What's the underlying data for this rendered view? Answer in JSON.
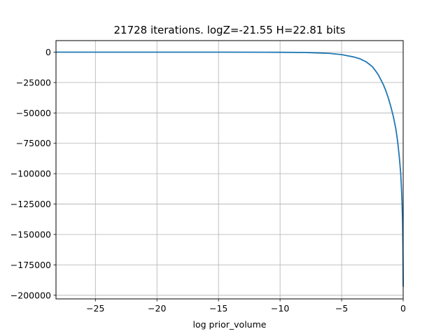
{
  "chart_data": {
    "type": "line",
    "title": "21728 iterations. logZ=-21.55 H=22.81 bits",
    "xlabel": "log prior_volume",
    "ylabel": "",
    "xlim": [
      -28.2,
      0
    ],
    "ylim": [
      -203000,
      9500
    ],
    "grid": true,
    "xticks": [
      -25,
      -20,
      -15,
      -10,
      -5,
      0
    ],
    "yticks": [
      0,
      -25000,
      -50000,
      -75000,
      -100000,
      -125000,
      -150000,
      -175000,
      -200000
    ],
    "xtick_labels": [
      "−25",
      "−20",
      "−15",
      "−10",
      "−5",
      "0"
    ],
    "ytick_labels": [
      "0",
      "−25000",
      "−50000",
      "−75000",
      "−100000",
      "−125000",
      "−150000",
      "−175000",
      "−200000"
    ],
    "colors": {
      "line": "#1f77b4",
      "grid": "#b0b0b0"
    },
    "series": [
      {
        "x": [
          -28.2,
          -25,
          -20,
          -15,
          -10,
          -8,
          -7,
          -6,
          -5.5,
          -5,
          -4.5,
          -4,
          -3.5,
          -3,
          -2.5,
          -2.2,
          -2,
          -1.8,
          -1.6,
          -1.4,
          -1.2,
          -1.0,
          -0.8,
          -0.6,
          -0.5,
          -0.4,
          -0.3,
          -0.2,
          -0.15,
          -0.1,
          -0.05,
          -0.02,
          0
        ],
        "y": [
          0,
          0,
          0,
          0,
          -100,
          -300,
          -600,
          -1000,
          -1500,
          -2000,
          -3000,
          -4000,
          -5500,
          -8000,
          -12000,
          -16000,
          -19000,
          -23000,
          -27000,
          -32000,
          -38000,
          -45000,
          -53000,
          -63000,
          -70000,
          -78000,
          -88000,
          -100000,
          -110000,
          -122000,
          -140000,
          -165000,
          -193000
        ]
      }
    ]
  }
}
